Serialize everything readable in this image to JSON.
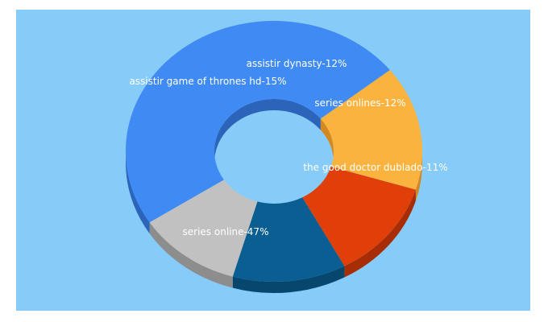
{
  "chart_data": {
    "type": "pie",
    "style": "3d-donut",
    "background": "#87CBF8",
    "slices": [
      {
        "label": "series online-47%",
        "value": 47,
        "color": "#3F8AF3",
        "side": "#2C64BA"
      },
      {
        "label": "assistir game of thrones hd-15%",
        "value": 15,
        "color": "#FBB33F",
        "side": "#D28920"
      },
      {
        "label": "assistir dynasty-12%",
        "value": 12,
        "color": "#E03F0A",
        "side": "#A62D06"
      },
      {
        "label": "series onlines-12%",
        "value": 12,
        "color": "#0A5E92",
        "side": "#07466D"
      },
      {
        "label": "the good doctor dublado-11%",
        "value": 11,
        "color": "#C1C1C1",
        "side": "#8D8D8D"
      }
    ]
  }
}
